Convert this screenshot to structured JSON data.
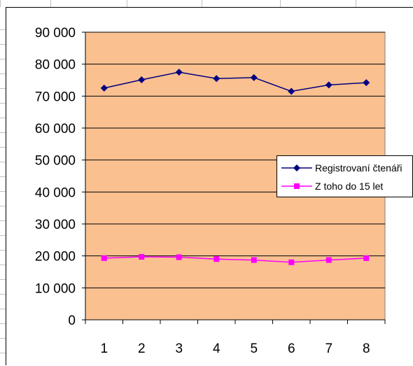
{
  "chart_data": {
    "type": "line",
    "categories": [
      "1",
      "2",
      "3",
      "4",
      "5",
      "6",
      "7",
      "8"
    ],
    "series": [
      {
        "name": "Registrovaní čtenáři",
        "color": "#000080",
        "marker": "diamond",
        "values": [
          72500,
          75100,
          77500,
          75500,
          75800,
          71500,
          73500,
          74200
        ]
      },
      {
        "name": "Z toho do 15 let",
        "color": "#ff00ff",
        "marker": "square",
        "values": [
          19300,
          19700,
          19600,
          19000,
          18700,
          18000,
          18700,
          19300
        ]
      }
    ],
    "y_ticks": [
      "0",
      "10 000",
      "20 000",
      "30 000",
      "40 000",
      "50 000",
      "60 000",
      "70 000",
      "80 000",
      "90 000"
    ],
    "ylim": [
      0,
      90000
    ],
    "grid": true,
    "plot_background": "#fac090",
    "legend_position": "right"
  }
}
